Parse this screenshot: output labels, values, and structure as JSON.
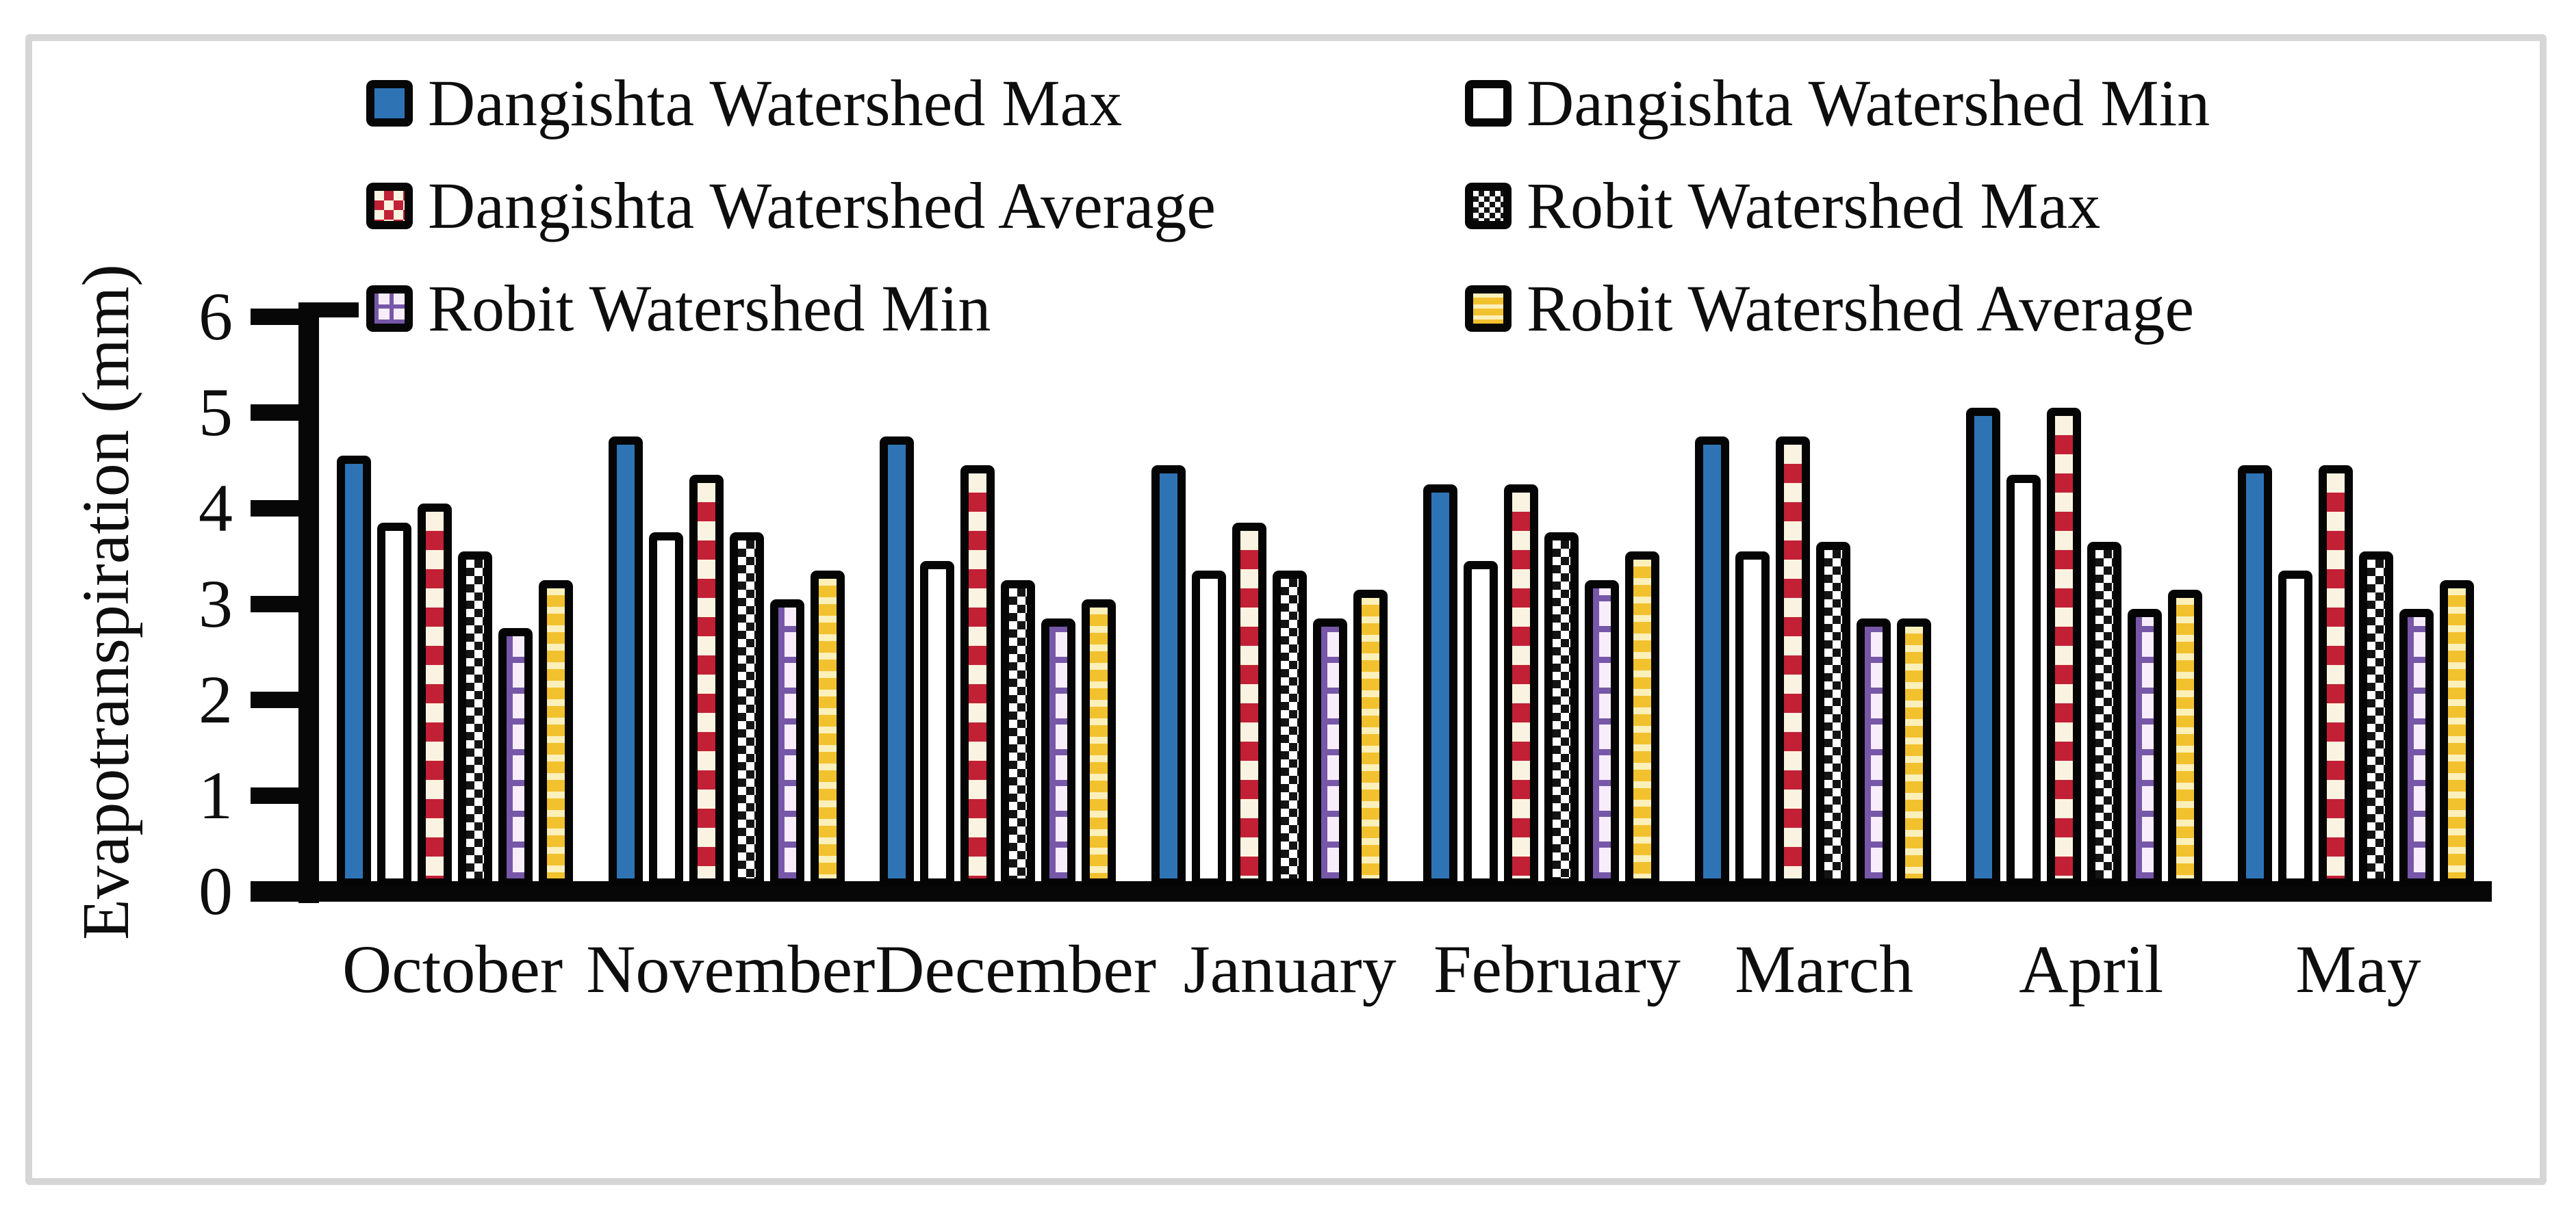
{
  "figure": {
    "background_color": "#ffffff",
    "frame_border_color": "#d6d6d6",
    "axis_color": "#070707",
    "text_color": "#0e0e0e"
  },
  "chart_data": {
    "type": "bar",
    "title": "",
    "xlabel": "",
    "ylabel": "Evapotranspiration (mm)",
    "ylim": [
      0,
      6
    ],
    "yticks": [
      0,
      1,
      2,
      3,
      4,
      5,
      6
    ],
    "grid": false,
    "legend_position": "top",
    "categories": [
      "October",
      "November",
      "December",
      "January",
      "February",
      "March",
      "April",
      "May"
    ],
    "series": [
      {
        "name": "Dangishta Watershed Max",
        "pattern": "solid-blue",
        "color": "#2e74b5",
        "values": [
          4.5,
          4.7,
          4.7,
          4.4,
          4.2,
          4.7,
          5.0,
          4.4
        ]
      },
      {
        "name": "Dangishta Watershed Min",
        "pattern": "solid-white",
        "color": "#ffffff",
        "values": [
          3.8,
          3.7,
          3.4,
          3.3,
          3.4,
          3.5,
          4.3,
          3.3
        ]
      },
      {
        "name": "Dangishta Watershed Average",
        "pattern": "red-checker",
        "color": "#c22035",
        "values": [
          4.0,
          4.3,
          4.4,
          3.8,
          4.2,
          4.7,
          5.0,
          4.4
        ]
      },
      {
        "name": "Robit Watershed Max",
        "pattern": "black-checker",
        "color": "#141414",
        "values": [
          3.5,
          3.7,
          3.2,
          3.3,
          3.7,
          3.6,
          3.6,
          3.5
        ]
      },
      {
        "name": "Robit Watershed Min",
        "pattern": "purple-grid",
        "color": "#7757a8",
        "values": [
          2.7,
          3.0,
          2.8,
          2.8,
          3.2,
          2.8,
          2.9,
          2.9
        ]
      },
      {
        "name": "Robit Watershed Average",
        "pattern": "yellow-stripe",
        "color": "#f2c12e",
        "values": [
          3.2,
          3.3,
          3.0,
          3.1,
          3.5,
          2.8,
          3.1,
          3.2
        ]
      }
    ]
  }
}
